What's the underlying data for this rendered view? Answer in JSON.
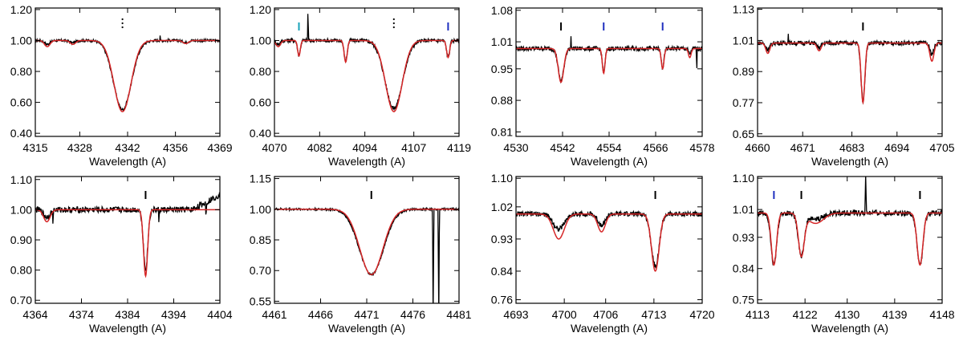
{
  "figure_colors": {
    "observed": "#000000",
    "model": "#d62728",
    "marker_black": "#000000",
    "marker_blue": "#1f2fbf",
    "marker_cyan": "#17a2b8"
  },
  "chart_data": [
    {
      "type": "line",
      "title": "",
      "xlabel": "Wavelength (A)",
      "ylabel": "",
      "xlim": [
        4315,
        4369
      ],
      "ylim": [
        0.38,
        1.21
      ],
      "xticks": [
        "4315",
        "4328",
        "4342",
        "4356",
        "4369"
      ],
      "yticks": [
        "0.40",
        "0.60",
        "0.80",
        "1.00",
        "1.20"
      ],
      "lines": [
        {
          "center": 4340.5,
          "depth": 0.46,
          "width": 2.5,
          "color": "black",
          "marker": "dotted"
        }
      ],
      "extra_lines": [
        {
          "center": 4318.5,
          "depth": 0.04,
          "width": 0.8
        },
        {
          "center": 4326,
          "depth": 0.025,
          "width": 0.8
        },
        {
          "center": 4359,
          "depth": 0.02,
          "width": 0.8
        }
      ],
      "spikes": [
        {
          "center": 4351.5,
          "height": 0.04,
          "width": 0.1
        }
      ],
      "obs_scale": 0.97,
      "noise": 0.008,
      "model_wing": 0.025,
      "baseline": 1.0,
      "series": [
        {
          "name": "observed",
          "color": "#000000"
        },
        {
          "name": "model",
          "color": "#d62728"
        }
      ]
    },
    {
      "type": "line",
      "title": "",
      "xlabel": "Wavelength (A)",
      "ylabel": "",
      "xlim": [
        4070,
        4119
      ],
      "ylim": [
        0.38,
        1.21
      ],
      "xticks": [
        "4070",
        "4082",
        "4094",
        "4107",
        "4119"
      ],
      "yticks": [
        "0.40",
        "0.60",
        "0.80",
        "1.00",
        "1.20"
      ],
      "lines": [
        {
          "center": 4101.7,
          "depth": 0.46,
          "width": 2.2,
          "color": "black",
          "marker": "dotted"
        },
        {
          "center": 4076.5,
          "depth": 0.1,
          "width": 0.35,
          "color": "cyan",
          "marker": "bar"
        },
        {
          "center": 4088.9,
          "depth": 0.14,
          "width": 0.4,
          "color": "none",
          "marker": "none"
        },
        {
          "center": 4116.1,
          "depth": 0.11,
          "width": 0.4,
          "color": "blue",
          "marker": "bar"
        }
      ],
      "extra_lines": [
        {
          "center": 4071,
          "depth": 0.04,
          "width": 0.6
        }
      ],
      "spikes": [
        {
          "center": 4078.9,
          "height": 0.22,
          "width": 0.12
        }
      ],
      "obs_scale": 0.95,
      "noise": 0.012,
      "model_wing": 0.03,
      "baseline": 1.0,
      "series": [
        {
          "name": "observed",
          "color": "#000000"
        },
        {
          "name": "model",
          "color": "#d62728"
        }
      ]
    },
    {
      "type": "line",
      "title": "",
      "xlabel": "Wavelength (A)",
      "ylabel": "",
      "xlim": [
        4530,
        4578
      ],
      "ylim": [
        0.8,
        1.085
      ],
      "xticks": [
        "4530",
        "4542",
        "4554",
        "4566",
        "4578"
      ],
      "yticks": [
        "0.81",
        "0.88",
        "0.95",
        "1.01",
        "1.08"
      ],
      "lines": [
        {
          "center": 4541.6,
          "depth": 0.075,
          "width": 0.7,
          "color": "black",
          "marker": "bar"
        },
        {
          "center": 4552.6,
          "depth": 0.055,
          "width": 0.35,
          "color": "blue",
          "marker": "bar"
        },
        {
          "center": 4567.8,
          "depth": 0.045,
          "width": 0.35,
          "color": "blue",
          "marker": "bar"
        }
      ],
      "extra_lines": [
        {
          "center": 4574.8,
          "depth": 0.02,
          "width": 0.35
        }
      ],
      "spikes": [
        {
          "center": 4544.2,
          "height": 0.03,
          "width": 0.1
        },
        {
          "center": 4576.6,
          "height": -0.06,
          "width": 0.1
        }
      ],
      "obs_scale": 0.95,
      "noise": 0.005,
      "model_wing": 0.0,
      "baseline": 0.995,
      "series": [
        {
          "name": "observed",
          "color": "#000000"
        },
        {
          "name": "model",
          "color": "#d62728"
        }
      ]
    },
    {
      "type": "line",
      "title": "",
      "xlabel": "Wavelength (A)",
      "ylabel": "",
      "xlim": [
        4660,
        4705
      ],
      "ylim": [
        0.64,
        1.135
      ],
      "xticks": [
        "4660",
        "4671",
        "4683",
        "4694",
        "4705"
      ],
      "yticks": [
        "0.65",
        "0.77",
        "0.89",
        "1.01",
        "1.13"
      ],
      "lines": [
        {
          "center": 4685.7,
          "depth": 0.23,
          "width": 0.45,
          "color": "black",
          "marker": "bar"
        }
      ],
      "extra_lines": [
        {
          "center": 4662.5,
          "depth": 0.04,
          "width": 0.5
        },
        {
          "center": 4675,
          "depth": 0.03,
          "width": 0.5
        },
        {
          "center": 4702.5,
          "depth": 0.07,
          "width": 0.5
        }
      ],
      "spikes": [
        {
          "center": 4667.5,
          "height": 0.04,
          "width": 0.1
        }
      ],
      "obs_scale": 0.97,
      "noise": 0.008,
      "model_wing": 0.0,
      "baseline": 1.0,
      "series": [
        {
          "name": "observed",
          "color": "#000000"
        },
        {
          "name": "model",
          "color": "#d62728"
        }
      ]
    },
    {
      "type": "line",
      "title": "",
      "xlabel": "Wavelength (A)",
      "ylabel": "",
      "xlim": [
        4364,
        4404
      ],
      "ylim": [
        0.69,
        1.11
      ],
      "xticks": [
        "4364",
        "4374",
        "4384",
        "4394",
        "4404"
      ],
      "yticks": [
        "0.70",
        "0.80",
        "0.90",
        "1.00",
        "1.10"
      ],
      "lines": [
        {
          "center": 4387.9,
          "depth": 0.22,
          "width": 0.45,
          "color": "black",
          "marker": "bar"
        }
      ],
      "extra_lines": [
        {
          "center": 4366.5,
          "depth": 0.04,
          "width": 0.7
        }
      ],
      "spikes": [
        {
          "center": 4367.8,
          "height": -0.04,
          "width": 0.1
        },
        {
          "center": 4390.8,
          "height": -0.05,
          "width": 0.1
        },
        {
          "center": 4401,
          "height": -0.06,
          "width": 0.1
        }
      ],
      "obs_scale": 0.9,
      "noise": 0.01,
      "model_wing": 0.0,
      "baseline": 1.0,
      "trend": 0.05,
      "series": [
        {
          "name": "observed",
          "color": "#000000"
        },
        {
          "name": "model",
          "color": "#d62728"
        }
      ]
    },
    {
      "type": "line",
      "title": "",
      "xlabel": "Wavelength (A)",
      "ylabel": "",
      "xlim": [
        4461,
        4481
      ],
      "ylim": [
        0.54,
        1.16
      ],
      "xticks": [
        "4461",
        "4466",
        "4471",
        "4476",
        "4481"
      ],
      "yticks": [
        "0.55",
        "0.70",
        "0.85",
        "1.00",
        "1.15"
      ],
      "lines": [
        {
          "center": 4471.5,
          "depth": 0.32,
          "width": 1.25,
          "color": "black",
          "marker": "bar"
        }
      ],
      "extra_lines": [],
      "spikes": [
        {
          "center": 4478.2,
          "height": -0.6,
          "width": 0.06
        },
        {
          "center": 4478.8,
          "height": -0.6,
          "width": 0.06
        }
      ],
      "obs_scale": 1.0,
      "noise": 0.005,
      "model_wing": 0.0,
      "baseline": 1.0,
      "series": [
        {
          "name": "observed",
          "color": "#000000"
        },
        {
          "name": "model",
          "color": "#d62728"
        }
      ]
    },
    {
      "type": "line",
      "title": "",
      "xlabel": "Wavelength (A)",
      "ylabel": "",
      "xlim": [
        4693,
        4720
      ],
      "ylim": [
        0.75,
        1.105
      ],
      "xticks": [
        "4693",
        "4700",
        "4706",
        "4713",
        "4720"
      ],
      "yticks": [
        "0.76",
        "0.84",
        "0.93",
        "1.02",
        "1.10"
      ],
      "lines": [
        {
          "center": 4713.2,
          "depth": 0.16,
          "width": 0.55,
          "color": "black",
          "marker": "bar"
        }
      ],
      "extra_lines": [
        {
          "center": 4699.2,
          "depth": 0.07,
          "width": 0.8
        },
        {
          "center": 4705.4,
          "depth": 0.05,
          "width": 0.55
        }
      ],
      "spikes": [],
      "obs_scale": 0.9,
      "noise": 0.007,
      "model_wing": 0.0,
      "baseline": 1.0,
      "series": [
        {
          "name": "observed",
          "color": "#000000"
        },
        {
          "name": "model",
          "color": "#d62728"
        }
      ]
    },
    {
      "type": "line",
      "title": "",
      "xlabel": "Wavelength (A)",
      "ylabel": "",
      "xlim": [
        4113,
        4148
      ],
      "ylim": [
        0.74,
        1.105
      ],
      "xticks": [
        "4113",
        "4122",
        "4130",
        "4139",
        "4148"
      ],
      "yticks": [
        "0.75",
        "0.84",
        "0.93",
        "1.01",
        "1.10"
      ],
      "lines": [
        {
          "center": 4116.1,
          "depth": 0.15,
          "width": 0.5,
          "color": "blue",
          "marker": "bar"
        },
        {
          "center": 4121.3,
          "depth": 0.12,
          "width": 0.55,
          "color": "black",
          "marker": "bar"
        },
        {
          "center": 4143.8,
          "depth": 0.15,
          "width": 0.55,
          "color": "black",
          "marker": "bar"
        }
      ],
      "extra_lines": [
        {
          "center": 4124,
          "depth": 0.03,
          "width": 1.5
        }
      ],
      "spikes": [
        {
          "center": 4133.5,
          "height": 0.11,
          "width": 0.12
        }
      ],
      "obs_scale": 1.0,
      "noise": 0.008,
      "model_wing": 0.0,
      "baseline": 1.0,
      "series": [
        {
          "name": "observed",
          "color": "#000000"
        },
        {
          "name": "model",
          "color": "#d62728"
        }
      ]
    }
  ]
}
